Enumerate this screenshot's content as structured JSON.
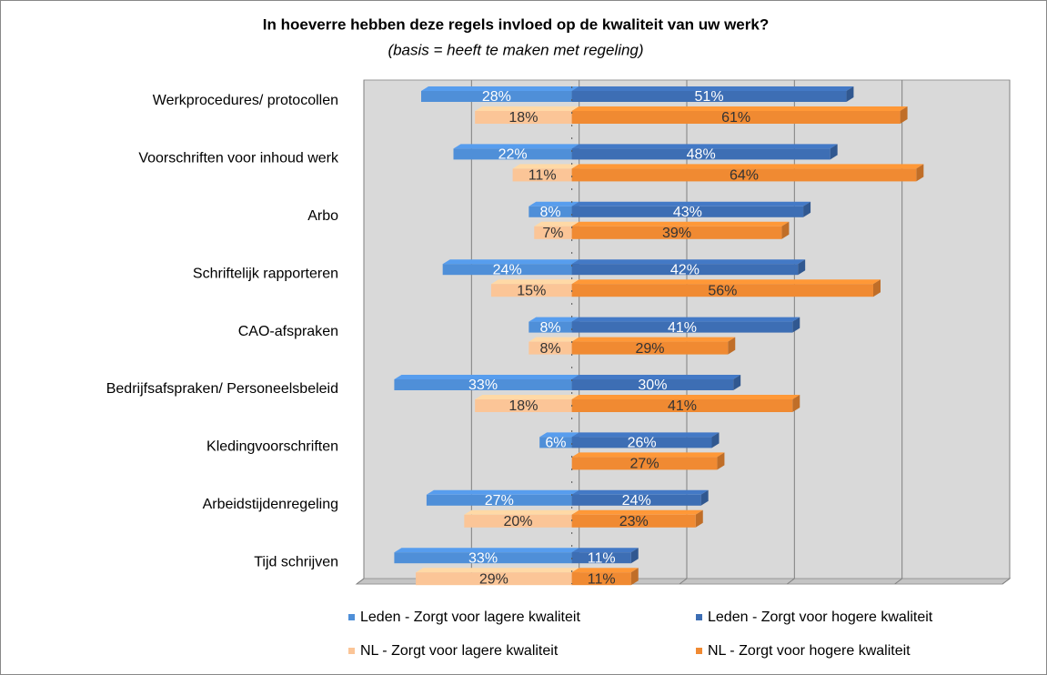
{
  "chart_data": {
    "type": "bar",
    "orientation": "horizontal",
    "title": "In hoeverre hebben deze regels invloed op de kwaliteit van uw werk?",
    "subtitle": "(basis = heeft te maken met regeling)",
    "categories": [
      "Werkprocedures/ protocollen",
      "Voorschriften voor inhoud werk",
      "Arbo",
      "Schriftelijk rapporteren",
      "CAO-afspraken",
      "Bedrijfsafspraken/ Personeelsbeleid",
      "Kledingvoorschriften",
      "Arbeidstijdenregeling",
      "Tijd schrijven"
    ],
    "series": [
      {
        "name": "Leden - Zorgt voor lagere kwaliteit",
        "color": "#4f8fd8",
        "label_color": "#ffffff",
        "row": 0,
        "values": [
          -28,
          -22,
          -8,
          -24,
          -8,
          -33,
          -6,
          -27,
          -33
        ],
        "value_labels": [
          "28%",
          "22%",
          "8%",
          "24%",
          "8%",
          "33%",
          "6%",
          "27%",
          "33%"
        ]
      },
      {
        "name": "Leden - Zorgt voor hogere kwaliteit",
        "color": "#3d6eb4",
        "label_color": "#ffffff",
        "row": 0,
        "values": [
          51,
          48,
          43,
          42,
          41,
          30,
          26,
          24,
          11
        ],
        "value_labels": [
          "51%",
          "48%",
          "43%",
          "42%",
          "41%",
          "30%",
          "26%",
          "24%",
          "11%"
        ]
      },
      {
        "name": "NL - Zorgt voor lagere kwaliteit",
        "color": "#fbc597",
        "label_color": "#333333",
        "row": 1,
        "values": [
          -18,
          -11,
          -7,
          -15,
          -8,
          -18,
          null,
          -20,
          -29
        ],
        "value_labels": [
          "18%",
          "11%",
          "7%",
          "15%",
          "8%",
          "18%",
          null,
          "20%",
          "29%"
        ]
      },
      {
        "name": "NL - Zorgt voor hogere kwaliteit",
        "color": "#f08a32",
        "label_color": "#333333",
        "row": 1,
        "values": [
          61,
          64,
          39,
          56,
          29,
          41,
          27,
          23,
          11
        ],
        "value_labels": [
          "61%",
          "64%",
          "39%",
          "56%",
          "29%",
          "41%",
          "27%",
          "23%",
          "11%"
        ]
      }
    ],
    "xlim": [
      -40,
      80
    ],
    "xticks": [
      -40,
      -20,
      0,
      20,
      40,
      60,
      80
    ],
    "grid": true,
    "legend": "bottom"
  }
}
